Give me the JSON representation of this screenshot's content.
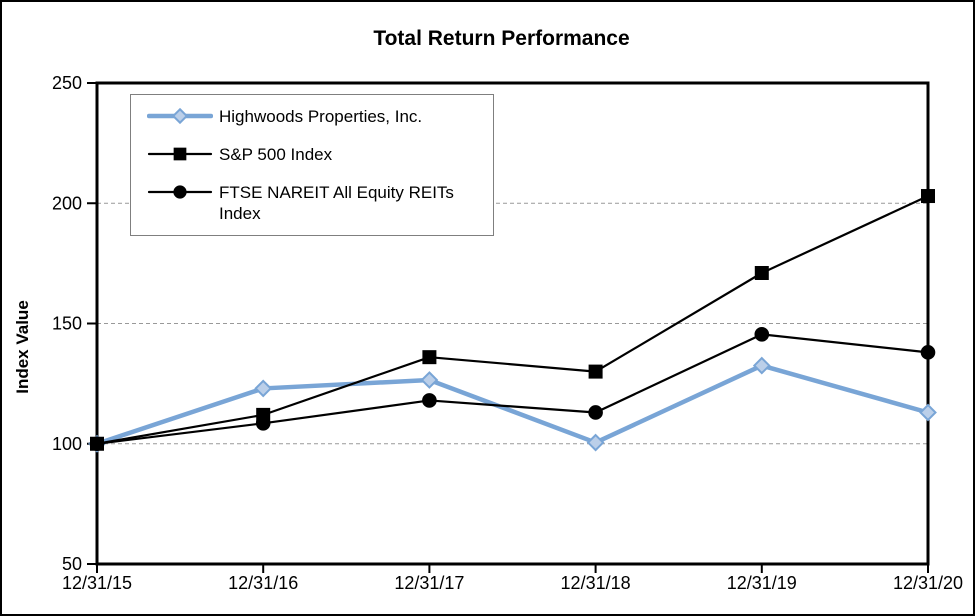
{
  "chart_data": {
    "type": "line",
    "title": "Total Return Performance",
    "ylabel": "Index Value",
    "xlabel": "",
    "ylim": [
      50,
      250
    ],
    "y_ticks": [
      250,
      200,
      150,
      100,
      50
    ],
    "gridline_values": [
      200,
      150,
      100
    ],
    "grid": true,
    "legend_position": "top-left inside plot area",
    "gridline_color": "#999999",
    "axis_color": "#000000",
    "categories": [
      "12/31/15",
      "12/31/16",
      "12/31/17",
      "12/31/18",
      "12/31/19",
      "12/31/20"
    ],
    "series": [
      {
        "name": "Highwoods Properties, Inc.",
        "marker": "diamond",
        "color": "#79A5D6",
        "marker_fill": "#BBCFE9",
        "line_width": 4.5,
        "values": [
          100,
          123,
          126.5,
          100.5,
          132.5,
          113
        ]
      },
      {
        "name": "S&P 500 Index",
        "marker": "square",
        "color": "#000000",
        "marker_fill": "#000000",
        "line_width": 2.2,
        "values": [
          100,
          112,
          136,
          130,
          171,
          203
        ]
      },
      {
        "name": "FTSE NAREIT All Equity REITs Index",
        "marker": "circle",
        "color": "#000000",
        "marker_fill": "#000000",
        "line_width": 2.2,
        "values": [
          100,
          108.5,
          118,
          113,
          145.5,
          138
        ]
      }
    ]
  }
}
